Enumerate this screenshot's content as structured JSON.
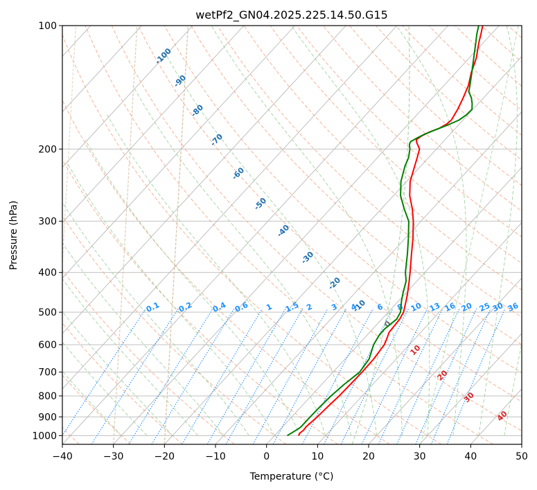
{
  "chart_data": {
    "type": "skew-t log-p",
    "title": "wetPf2_GN04.2025.225.14.50.G15",
    "xlabel": "Temperature (°C)",
    "ylabel": "Pressure (hPa)",
    "xlim": [
      -40,
      50
    ],
    "ylim": [
      1050,
      100
    ],
    "x_ticks": [
      "−40",
      "−30",
      "−20",
      "−10",
      "0",
      "10",
      "20",
      "30",
      "40",
      "50"
    ],
    "x_tick_values": [
      -40,
      -30,
      -20,
      -10,
      0,
      10,
      20,
      30,
      40,
      50
    ],
    "y_ticks": [
      "100",
      "200",
      "300",
      "400",
      "500",
      "600",
      "700",
      "800",
      "900",
      "1000"
    ],
    "y_tick_values": [
      100,
      200,
      300,
      400,
      500,
      600,
      700,
      800,
      900,
      1000
    ],
    "y_scale": "log",
    "grid": true,
    "series": [
      {
        "color": "#ff0000",
        "points": [
          {
            "p": 1000,
            "t": 4.7
          },
          {
            "p": 985,
            "t": 4.5
          },
          {
            "p": 970,
            "t": 4.7
          },
          {
            "p": 950,
            "t": 4.6
          },
          {
            "p": 900,
            "t": 5.0
          },
          {
            "p": 850,
            "t": 5.2
          },
          {
            "p": 800,
            "t": 5.5
          },
          {
            "p": 750,
            "t": 5.6
          },
          {
            "p": 700,
            "t": 5.7
          },
          {
            "p": 650,
            "t": 5.6
          },
          {
            "p": 600,
            "t": 5.1
          },
          {
            "p": 580,
            "t": 4.5
          },
          {
            "p": 560,
            "t": 3.8
          },
          {
            "p": 520,
            "t": 3.5
          },
          {
            "p": 500,
            "t": 3.0
          },
          {
            "p": 470,
            "t": 1.5
          },
          {
            "p": 450,
            "t": 0.4
          },
          {
            "p": 420,
            "t": -1.5
          },
          {
            "p": 400,
            "t": -2.9
          },
          {
            "p": 360,
            "t": -6.0
          },
          {
            "p": 330,
            "t": -8.5
          },
          {
            "p": 300,
            "t": -11.5
          },
          {
            "p": 280,
            "t": -13.9
          },
          {
            "p": 260,
            "t": -16.8
          },
          {
            "p": 240,
            "t": -19.3
          },
          {
            "p": 220,
            "t": -21.2
          },
          {
            "p": 210,
            "t": -22.2
          },
          {
            "p": 200,
            "t": -23.3
          },
          {
            "p": 193,
            "t": -25.0
          },
          {
            "p": 190,
            "t": -25.6
          },
          {
            "p": 186,
            "t": -25.3
          },
          {
            "p": 182,
            "t": -24.5
          },
          {
            "p": 178,
            "t": -23.2
          },
          {
            "p": 174,
            "t": -22.5
          },
          {
            "p": 170,
            "t": -22.3
          },
          {
            "p": 160,
            "t": -23.0
          },
          {
            "p": 150,
            "t": -24.0
          },
          {
            "p": 140,
            "t": -25.2
          },
          {
            "p": 130,
            "t": -27.0
          },
          {
            "p": 120,
            "t": -28.6
          },
          {
            "p": 110,
            "t": -30.9
          },
          {
            "p": 105,
            "t": -32.0
          },
          {
            "p": 100,
            "t": -33.2
          }
        ]
      },
      {
        "color": "#008000",
        "points": [
          {
            "p": 1000,
            "t": 2.5
          },
          {
            "p": 980,
            "t": 3.0
          },
          {
            "p": 960,
            "t": 3.5
          },
          {
            "p": 950,
            "t": 3.6
          },
          {
            "p": 900,
            "t": 3.6
          },
          {
            "p": 850,
            "t": 3.7
          },
          {
            "p": 800,
            "t": 3.9
          },
          {
            "p": 750,
            "t": 4.4
          },
          {
            "p": 700,
            "t": 5.2
          },
          {
            "p": 650,
            "t": 4.7
          },
          {
            "p": 600,
            "t": 3.0
          },
          {
            "p": 570,
            "t": 2.4
          },
          {
            "p": 550,
            "t": 2.3
          },
          {
            "p": 520,
            "t": 2.9
          },
          {
            "p": 500,
            "t": 2.4
          },
          {
            "p": 470,
            "t": 0.6
          },
          {
            "p": 450,
            "t": -0.5
          },
          {
            "p": 420,
            "t": -2.1
          },
          {
            "p": 400,
            "t": -3.8
          },
          {
            "p": 360,
            "t": -6.8
          },
          {
            "p": 330,
            "t": -9.4
          },
          {
            "p": 300,
            "t": -12.4
          },
          {
            "p": 280,
            "t": -15.5
          },
          {
            "p": 260,
            "t": -18.6
          },
          {
            "p": 240,
            "t": -21.1
          },
          {
            "p": 220,
            "t": -23.1
          },
          {
            "p": 210,
            "t": -23.9
          },
          {
            "p": 200,
            "t": -25.2
          },
          {
            "p": 195,
            "t": -26.1
          },
          {
            "p": 192,
            "t": -26.4
          },
          {
            "p": 188,
            "t": -25.8
          },
          {
            "p": 184,
            "t": -25.0
          },
          {
            "p": 180,
            "t": -23.8
          },
          {
            "p": 175,
            "t": -22.2
          },
          {
            "p": 170,
            "t": -20.8
          },
          {
            "p": 165,
            "t": -20.3
          },
          {
            "p": 160,
            "t": -20.2
          },
          {
            "p": 155,
            "t": -21.2
          },
          {
            "p": 150,
            "t": -22.4
          },
          {
            "p": 145,
            "t": -24.0
          },
          {
            "p": 140,
            "t": -24.9
          },
          {
            "p": 130,
            "t": -26.9
          },
          {
            "p": 120,
            "t": -29.1
          },
          {
            "p": 110,
            "t": -31.5
          },
          {
            "p": 105,
            "t": -32.8
          },
          {
            "p": 100,
            "t": -34.0
          }
        ]
      }
    ],
    "dry_adiabat_labels": [
      {
        "text": "-100",
        "p": 120
      },
      {
        "text": "-90",
        "p": 138
      },
      {
        "text": "-80",
        "p": 163
      },
      {
        "text": "-70",
        "p": 192
      },
      {
        "text": "-60",
        "p": 232
      },
      {
        "text": "-50",
        "p": 275
      },
      {
        "text": "-40",
        "p": 320
      },
      {
        "text": "-30",
        "p": 372
      },
      {
        "text": "-20",
        "p": 430
      },
      {
        "text": "-10",
        "p": 488
      },
      {
        "text": "0",
        "p": 540
      }
    ],
    "moist_adiabat_labels": [
      {
        "text": "10",
        "t": 29.5,
        "p": 625
      },
      {
        "text": "20",
        "t": 34.8,
        "p": 720
      },
      {
        "text": "30",
        "t": 40.0,
        "p": 815
      },
      {
        "text": "40",
        "t": 46.5,
        "p": 905
      }
    ],
    "mixing_ratio_labels": [
      "0.1",
      "0.2",
      "0.4",
      "0.6",
      "1",
      "1.5",
      "2",
      "3",
      "4",
      "6",
      "8",
      "10",
      "13",
      "16",
      "20",
      "25",
      "30",
      "36"
    ],
    "mixing_ratio_label_pressure": 500,
    "colors": {
      "temperature": "#ff0000",
      "dewpoint": "#008000",
      "dry_adiabat": "#f4a582",
      "moist_adiabat": "#9fd19f",
      "mixing_ratio": "#1e90ff",
      "isotherm": "#b8b8b8",
      "grid": "#b8b8b8",
      "curved_lines": "#d9c4a8"
    }
  }
}
